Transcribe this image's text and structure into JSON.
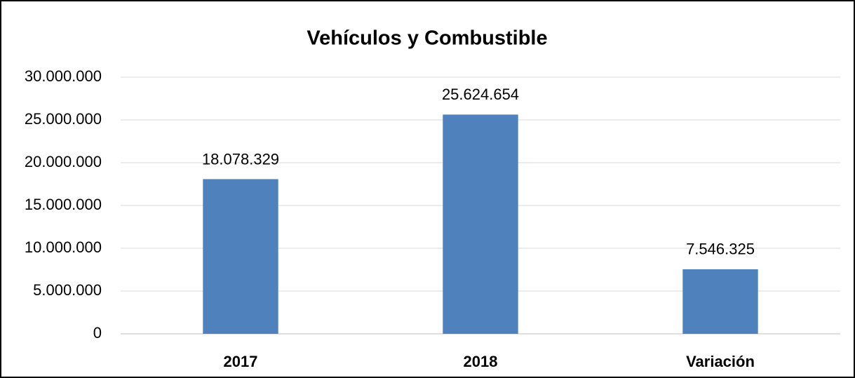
{
  "chart_data": {
    "type": "bar",
    "title": "Vehículos y Combustible",
    "categories": [
      "2017",
      "2018",
      "Variación"
    ],
    "values": [
      18078329,
      25624654,
      7546325
    ],
    "value_labels": [
      "18.078.329",
      "25.624.654",
      "7.546.325"
    ],
    "color": "#4f81bd",
    "ylim": [
      0,
      30000000
    ],
    "yticks": [
      0,
      {
        "value": 5000000,
        "label": "5.000.000"
      },
      {
        "value": 10000000,
        "label": "10.000.000"
      },
      {
        "value": 15000000,
        "label": "15.000.000"
      },
      {
        "value": 20000000,
        "label": "20.000.000"
      },
      {
        "value": 25000000,
        "label": "25.000.000"
      },
      {
        "value": 30000000,
        "label": "30.000.000"
      }
    ],
    "grid": true
  }
}
